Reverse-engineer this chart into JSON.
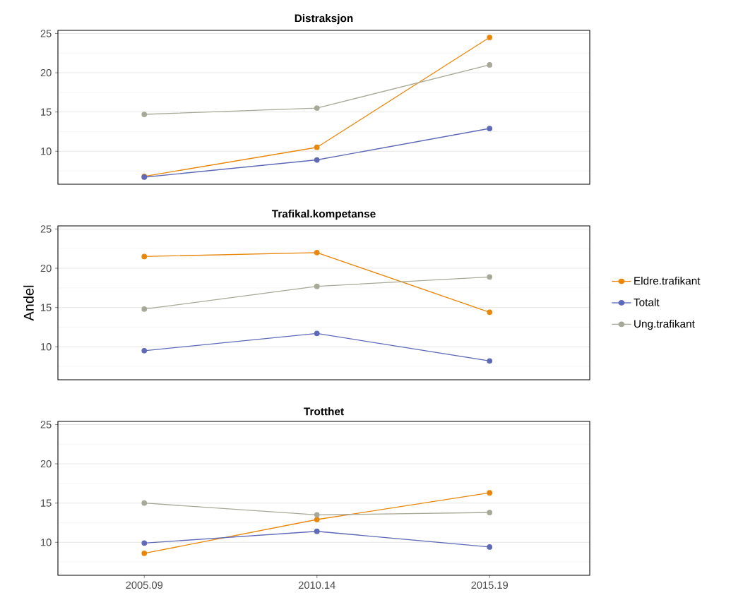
{
  "chart_data": [
    {
      "type": "line",
      "title": "Distraksjon",
      "categories": [
        "2005.09",
        "2010.14",
        "2015.19"
      ],
      "ylim": [
        5.8,
        25.4
      ],
      "yticks": [
        10,
        15,
        20,
        25
      ],
      "grid": "y",
      "marker": "circle",
      "legend": "right",
      "tick_labels": "y",
      "series": [
        {
          "name": "Eldre.trafikant",
          "color": "#e8870a",
          "values": [
            6.8,
            10.5,
            24.5
          ]
        },
        {
          "name": "Totalt",
          "color": "#5e6ab8",
          "values": [
            6.7,
            8.9,
            12.9
          ]
        },
        {
          "name": "Ung.trafikant",
          "color": "#a8a898",
          "values": [
            14.7,
            15.5,
            21.0
          ]
        }
      ]
    },
    {
      "type": "line",
      "title": "Trafikal.kompetanse",
      "ylabel": "Andel",
      "categories": [
        "2005.09",
        "2010.14",
        "2015.19"
      ],
      "ylim": [
        5.8,
        25.4
      ],
      "yticks": [
        10,
        15,
        20,
        25
      ],
      "grid": "y",
      "marker": "circle",
      "tick_labels": "y",
      "series": [
        {
          "color": "#e8870a",
          "values": [
            21.5,
            22.0,
            14.4
          ]
        },
        {
          "color": "#5e6ab8",
          "values": [
            9.5,
            11.7,
            8.2
          ]
        },
        {
          "color": "#a8a898",
          "values": [
            14.8,
            17.7,
            18.9
          ]
        }
      ]
    },
    {
      "type": "line",
      "title": "Trotthet",
      "categories": [
        "2005.09",
        "2010.14",
        "2015.19"
      ],
      "ylim": [
        5.8,
        25.4
      ],
      "yticks": [
        10,
        15,
        20,
        25
      ],
      "grid": "y",
      "marker": "circle",
      "legend": false,
      "series": [
        {
          "color": "#e8870a",
          "values": [
            8.6,
            12.9,
            16.3
          ]
        },
        {
          "color": "#5e6ab8",
          "values": [
            9.9,
            11.4,
            9.4
          ]
        },
        {
          "color": "#a8a898",
          "values": [
            15.0,
            13.5,
            13.8
          ]
        }
      ]
    }
  ]
}
